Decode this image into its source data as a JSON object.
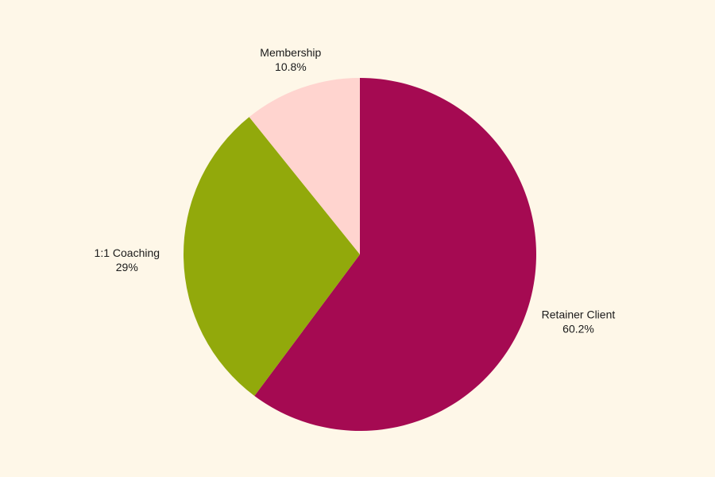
{
  "chart_data": {
    "type": "pie",
    "title": "",
    "start_angle_deg": 0,
    "direction": "clockwise",
    "slices": [
      {
        "label": "Retainer Client",
        "value": 60.2,
        "display": "60.2%",
        "color": "#A50A52"
      },
      {
        "label": "1:1 Coaching",
        "value": 29.0,
        "display": "29%",
        "color": "#92A90B"
      },
      {
        "label": "Membership",
        "value": 10.8,
        "display": "10.8%",
        "color": "#FFD4CF"
      }
    ],
    "label_placement": "outside"
  },
  "colors": {
    "background": "#FEF7E8",
    "label_text": "#1a1a1a"
  }
}
